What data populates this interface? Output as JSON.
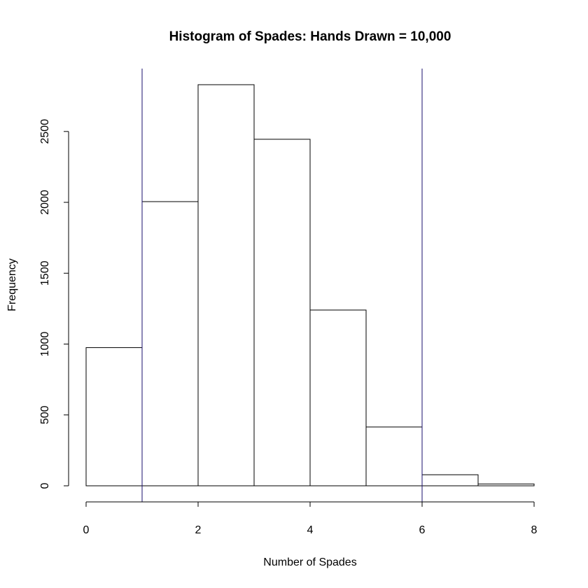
{
  "chart_data": {
    "type": "bar",
    "title": "Histogram of Spades: Hands Drawn = 10,000",
    "xlabel": "Number of Spades",
    "ylabel": "Frequency",
    "bins": [
      {
        "from": 0,
        "to": 1,
        "count": 975
      },
      {
        "from": 1,
        "to": 2,
        "count": 2005
      },
      {
        "from": 2,
        "to": 3,
        "count": 2830
      },
      {
        "from": 3,
        "to": 4,
        "count": 2445
      },
      {
        "from": 4,
        "to": 5,
        "count": 1240
      },
      {
        "from": 5,
        "to": 6,
        "count": 415
      },
      {
        "from": 6,
        "to": 7,
        "count": 78
      },
      {
        "from": 7,
        "to": 8,
        "count": 13
      }
    ],
    "xlim": [
      0,
      8
    ],
    "ylim": [
      0,
      2830
    ],
    "xticks": [
      "0",
      "2",
      "4",
      "6",
      "8"
    ],
    "yticks": [
      "0",
      "500",
      "1000",
      "1500",
      "2000",
      "2500"
    ],
    "vlines": [
      1,
      6
    ],
    "vline_color": "#1a0f6e",
    "grid": false
  }
}
